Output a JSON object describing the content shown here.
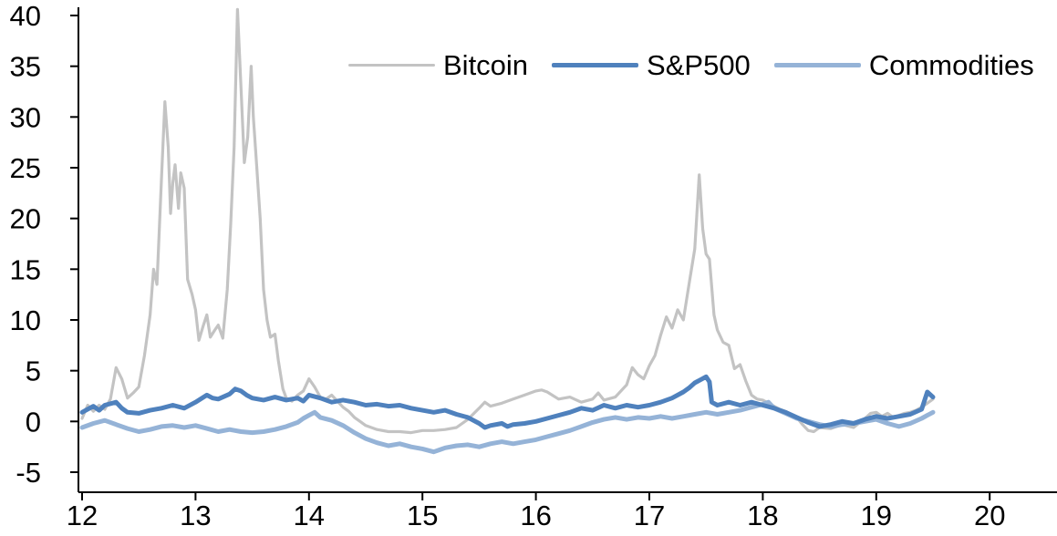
{
  "chart_data": {
    "type": "line",
    "title": "",
    "xlabel": "",
    "ylabel": "",
    "grid": false,
    "legend_position": "top-center",
    "background_color": "#FFFFFF",
    "axis_color": "#000000",
    "text_color": "#000000",
    "x_axis": {
      "min": 12,
      "max": 20,
      "ticks": [
        12,
        13,
        14,
        15,
        16,
        17,
        18,
        19,
        20
      ]
    },
    "y_axis": {
      "min": -5,
      "max": 40,
      "ticks": [
        -5,
        0,
        5,
        10,
        15,
        20,
        25,
        30,
        35,
        40
      ]
    },
    "series": [
      {
        "name": "Bitcoin",
        "color": "#C3C3C3",
        "line_width": 3.2,
        "points": [
          [
            12.0,
            0.3
          ],
          [
            12.05,
            1.6
          ],
          [
            12.1,
            1.0
          ],
          [
            12.15,
            1.6
          ],
          [
            12.2,
            1.2
          ],
          [
            12.25,
            2.2
          ],
          [
            12.3,
            5.3
          ],
          [
            12.35,
            4.2
          ],
          [
            12.4,
            2.3
          ],
          [
            12.45,
            2.8
          ],
          [
            12.5,
            3.4
          ],
          [
            12.55,
            6.5
          ],
          [
            12.6,
            10.5
          ],
          [
            12.63,
            15.0
          ],
          [
            12.66,
            13.5
          ],
          [
            12.7,
            24.0
          ],
          [
            12.73,
            31.5
          ],
          [
            12.76,
            27.0
          ],
          [
            12.78,
            20.5
          ],
          [
            12.8,
            23.5
          ],
          [
            12.82,
            25.3
          ],
          [
            12.85,
            21.0
          ],
          [
            12.87,
            24.5
          ],
          [
            12.9,
            23.0
          ],
          [
            12.93,
            14.0
          ],
          [
            12.97,
            12.5
          ],
          [
            13.0,
            11.0
          ],
          [
            13.03,
            8.0
          ],
          [
            13.07,
            9.5
          ],
          [
            13.1,
            10.5
          ],
          [
            13.13,
            8.3
          ],
          [
            13.17,
            9.0
          ],
          [
            13.2,
            9.5
          ],
          [
            13.24,
            8.2
          ],
          [
            13.28,
            13.0
          ],
          [
            13.31,
            19.5
          ],
          [
            13.34,
            27.0
          ],
          [
            13.37,
            40.6
          ],
          [
            13.4,
            33.0
          ],
          [
            13.43,
            25.5
          ],
          [
            13.46,
            28.0
          ],
          [
            13.49,
            35.0
          ],
          [
            13.51,
            30.0
          ],
          [
            13.54,
            25.0
          ],
          [
            13.57,
            20.0
          ],
          [
            13.6,
            13.0
          ],
          [
            13.63,
            10.0
          ],
          [
            13.66,
            8.3
          ],
          [
            13.7,
            8.6
          ],
          [
            13.73,
            6.0
          ],
          [
            13.77,
            3.2
          ],
          [
            13.8,
            2.3
          ],
          [
            13.85,
            2.0
          ],
          [
            13.9,
            2.6
          ],
          [
            13.95,
            3.0
          ],
          [
            14.0,
            4.2
          ],
          [
            14.05,
            3.4
          ],
          [
            14.1,
            2.4
          ],
          [
            14.15,
            2.2
          ],
          [
            14.2,
            2.6
          ],
          [
            14.25,
            2.0
          ],
          [
            14.3,
            1.4
          ],
          [
            14.35,
            1.0
          ],
          [
            14.4,
            0.4
          ],
          [
            14.45,
            0.0
          ],
          [
            14.5,
            -0.4
          ],
          [
            14.6,
            -0.8
          ],
          [
            14.7,
            -1.0
          ],
          [
            14.8,
            -1.0
          ],
          [
            14.9,
            -1.1
          ],
          [
            15.0,
            -0.9
          ],
          [
            15.1,
            -0.9
          ],
          [
            15.2,
            -0.8
          ],
          [
            15.3,
            -0.6
          ],
          [
            15.4,
            0.2
          ],
          [
            15.5,
            1.3
          ],
          [
            15.55,
            1.9
          ],
          [
            15.6,
            1.5
          ],
          [
            15.7,
            1.8
          ],
          [
            15.8,
            2.2
          ],
          [
            15.9,
            2.6
          ],
          [
            16.0,
            3.0
          ],
          [
            16.05,
            3.1
          ],
          [
            16.1,
            2.9
          ],
          [
            16.2,
            2.2
          ],
          [
            16.3,
            2.4
          ],
          [
            16.4,
            1.9
          ],
          [
            16.5,
            2.2
          ],
          [
            16.55,
            2.8
          ],
          [
            16.6,
            2.1
          ],
          [
            16.7,
            2.4
          ],
          [
            16.8,
            3.6
          ],
          [
            16.85,
            5.3
          ],
          [
            16.9,
            4.6
          ],
          [
            16.95,
            4.2
          ],
          [
            17.0,
            5.5
          ],
          [
            17.05,
            6.5
          ],
          [
            17.1,
            8.5
          ],
          [
            17.15,
            10.3
          ],
          [
            17.2,
            9.2
          ],
          [
            17.25,
            11.0
          ],
          [
            17.3,
            10.0
          ],
          [
            17.35,
            13.5
          ],
          [
            17.4,
            17.0
          ],
          [
            17.44,
            24.3
          ],
          [
            17.47,
            19.0
          ],
          [
            17.5,
            16.5
          ],
          [
            17.53,
            16.0
          ],
          [
            17.57,
            10.5
          ],
          [
            17.6,
            9.0
          ],
          [
            17.65,
            7.8
          ],
          [
            17.7,
            7.5
          ],
          [
            17.75,
            5.2
          ],
          [
            17.8,
            5.6
          ],
          [
            17.85,
            4.0
          ],
          [
            17.9,
            2.6
          ],
          [
            17.95,
            2.2
          ],
          [
            18.0,
            2.1
          ],
          [
            18.05,
            1.8
          ],
          [
            18.1,
            1.5
          ],
          [
            18.15,
            1.2
          ],
          [
            18.2,
            1.0
          ],
          [
            18.3,
            0.4
          ],
          [
            18.35,
            -0.3
          ],
          [
            18.4,
            -0.9
          ],
          [
            18.45,
            -1.0
          ],
          [
            18.5,
            -0.6
          ],
          [
            18.6,
            -0.7
          ],
          [
            18.7,
            -0.3
          ],
          [
            18.8,
            -0.6
          ],
          [
            18.9,
            0.3
          ],
          [
            18.95,
            0.8
          ],
          [
            19.0,
            0.9
          ],
          [
            19.05,
            0.5
          ],
          [
            19.1,
            0.8
          ],
          [
            19.15,
            0.4
          ],
          [
            19.2,
            0.6
          ],
          [
            19.25,
            0.8
          ],
          [
            19.3,
            0.9
          ],
          [
            19.35,
            1.1
          ],
          [
            19.4,
            1.4
          ],
          [
            19.45,
            1.8
          ],
          [
            19.5,
            2.2
          ]
        ]
      },
      {
        "name": "S&P500",
        "color": "#4F81BD",
        "line_width": 5,
        "points": [
          [
            12.0,
            0.9
          ],
          [
            12.1,
            1.5
          ],
          [
            12.15,
            1.1
          ],
          [
            12.2,
            1.6
          ],
          [
            12.3,
            1.9
          ],
          [
            12.35,
            1.3
          ],
          [
            12.4,
            0.9
          ],
          [
            12.5,
            0.8
          ],
          [
            12.6,
            1.1
          ],
          [
            12.7,
            1.3
          ],
          [
            12.8,
            1.6
          ],
          [
            12.9,
            1.3
          ],
          [
            13.0,
            1.9
          ],
          [
            13.1,
            2.6
          ],
          [
            13.15,
            2.3
          ],
          [
            13.2,
            2.2
          ],
          [
            13.3,
            2.7
          ],
          [
            13.35,
            3.2
          ],
          [
            13.4,
            3.0
          ],
          [
            13.45,
            2.6
          ],
          [
            13.5,
            2.3
          ],
          [
            13.6,
            2.1
          ],
          [
            13.7,
            2.4
          ],
          [
            13.8,
            2.1
          ],
          [
            13.9,
            2.3
          ],
          [
            13.95,
            2.0
          ],
          [
            14.0,
            2.6
          ],
          [
            14.1,
            2.3
          ],
          [
            14.2,
            1.9
          ],
          [
            14.3,
            2.1
          ],
          [
            14.4,
            1.9
          ],
          [
            14.5,
            1.6
          ],
          [
            14.6,
            1.7
          ],
          [
            14.7,
            1.5
          ],
          [
            14.8,
            1.6
          ],
          [
            14.9,
            1.3
          ],
          [
            15.0,
            1.1
          ],
          [
            15.1,
            0.9
          ],
          [
            15.2,
            1.1
          ],
          [
            15.3,
            0.7
          ],
          [
            15.4,
            0.4
          ],
          [
            15.5,
            -0.2
          ],
          [
            15.55,
            -0.6
          ],
          [
            15.6,
            -0.4
          ],
          [
            15.7,
            -0.2
          ],
          [
            15.75,
            -0.5
          ],
          [
            15.8,
            -0.3
          ],
          [
            15.9,
            -0.2
          ],
          [
            16.0,
            0.0
          ],
          [
            16.1,
            0.3
          ],
          [
            16.2,
            0.6
          ],
          [
            16.3,
            0.9
          ],
          [
            16.4,
            1.3
          ],
          [
            16.5,
            1.1
          ],
          [
            16.6,
            1.6
          ],
          [
            16.7,
            1.3
          ],
          [
            16.8,
            1.6
          ],
          [
            16.9,
            1.4
          ],
          [
            17.0,
            1.6
          ],
          [
            17.1,
            1.9
          ],
          [
            17.2,
            2.3
          ],
          [
            17.3,
            2.9
          ],
          [
            17.35,
            3.3
          ],
          [
            17.4,
            3.8
          ],
          [
            17.45,
            4.1
          ],
          [
            17.5,
            4.4
          ],
          [
            17.53,
            3.9
          ],
          [
            17.55,
            1.9
          ],
          [
            17.6,
            1.6
          ],
          [
            17.7,
            1.9
          ],
          [
            17.8,
            1.6
          ],
          [
            17.9,
            1.9
          ],
          [
            18.0,
            1.6
          ],
          [
            18.1,
            1.3
          ],
          [
            18.2,
            0.9
          ],
          [
            18.3,
            0.4
          ],
          [
            18.4,
            -0.1
          ],
          [
            18.5,
            -0.5
          ],
          [
            18.6,
            -0.3
          ],
          [
            18.7,
            0.0
          ],
          [
            18.8,
            -0.2
          ],
          [
            18.9,
            0.2
          ],
          [
            19.0,
            0.5
          ],
          [
            19.1,
            0.3
          ],
          [
            19.2,
            0.5
          ],
          [
            19.3,
            0.7
          ],
          [
            19.4,
            1.2
          ],
          [
            19.45,
            2.9
          ],
          [
            19.5,
            2.4
          ]
        ]
      },
      {
        "name": "Commodities",
        "color": "#95B3D7",
        "line_width": 5,
        "points": [
          [
            12.0,
            -0.6
          ],
          [
            12.1,
            -0.2
          ],
          [
            12.2,
            0.1
          ],
          [
            12.3,
            -0.3
          ],
          [
            12.4,
            -0.7
          ],
          [
            12.5,
            -1.0
          ],
          [
            12.6,
            -0.8
          ],
          [
            12.7,
            -0.5
          ],
          [
            12.8,
            -0.4
          ],
          [
            12.9,
            -0.6
          ],
          [
            13.0,
            -0.4
          ],
          [
            13.1,
            -0.7
          ],
          [
            13.2,
            -1.0
          ],
          [
            13.3,
            -0.8
          ],
          [
            13.4,
            -1.0
          ],
          [
            13.5,
            -1.1
          ],
          [
            13.6,
            -1.0
          ],
          [
            13.7,
            -0.8
          ],
          [
            13.8,
            -0.5
          ],
          [
            13.9,
            -0.1
          ],
          [
            13.95,
            0.3
          ],
          [
            14.0,
            0.6
          ],
          [
            14.05,
            0.9
          ],
          [
            14.1,
            0.4
          ],
          [
            14.2,
            0.1
          ],
          [
            14.3,
            -0.4
          ],
          [
            14.4,
            -1.1
          ],
          [
            14.5,
            -1.7
          ],
          [
            14.6,
            -2.1
          ],
          [
            14.7,
            -2.4
          ],
          [
            14.8,
            -2.2
          ],
          [
            14.9,
            -2.5
          ],
          [
            15.0,
            -2.7
          ],
          [
            15.1,
            -3.0
          ],
          [
            15.15,
            -2.8
          ],
          [
            15.2,
            -2.6
          ],
          [
            15.3,
            -2.4
          ],
          [
            15.4,
            -2.3
          ],
          [
            15.5,
            -2.5
          ],
          [
            15.6,
            -2.2
          ],
          [
            15.7,
            -2.0
          ],
          [
            15.8,
            -2.2
          ],
          [
            15.9,
            -2.0
          ],
          [
            16.0,
            -1.8
          ],
          [
            16.1,
            -1.5
          ],
          [
            16.2,
            -1.2
          ],
          [
            16.3,
            -0.9
          ],
          [
            16.4,
            -0.5
          ],
          [
            16.5,
            -0.1
          ],
          [
            16.6,
            0.2
          ],
          [
            16.7,
            0.4
          ],
          [
            16.8,
            0.2
          ],
          [
            16.9,
            0.4
          ],
          [
            17.0,
            0.3
          ],
          [
            17.1,
            0.5
          ],
          [
            17.2,
            0.3
          ],
          [
            17.3,
            0.5
          ],
          [
            17.4,
            0.7
          ],
          [
            17.5,
            0.9
          ],
          [
            17.6,
            0.7
          ],
          [
            17.7,
            0.9
          ],
          [
            17.8,
            1.1
          ],
          [
            17.9,
            1.4
          ],
          [
            18.0,
            1.7
          ],
          [
            18.05,
            1.9
          ],
          [
            18.1,
            1.3
          ],
          [
            18.2,
            0.8
          ],
          [
            18.3,
            0.3
          ],
          [
            18.4,
            0.0
          ],
          [
            18.5,
            -0.3
          ],
          [
            18.6,
            -0.5
          ],
          [
            18.7,
            -0.3
          ],
          [
            18.8,
            -0.2
          ],
          [
            18.9,
            0.0
          ],
          [
            19.0,
            0.2
          ],
          [
            19.1,
            -0.2
          ],
          [
            19.2,
            -0.5
          ],
          [
            19.3,
            -0.2
          ],
          [
            19.4,
            0.3
          ],
          [
            19.45,
            0.6
          ],
          [
            19.5,
            0.9
          ]
        ]
      }
    ]
  }
}
